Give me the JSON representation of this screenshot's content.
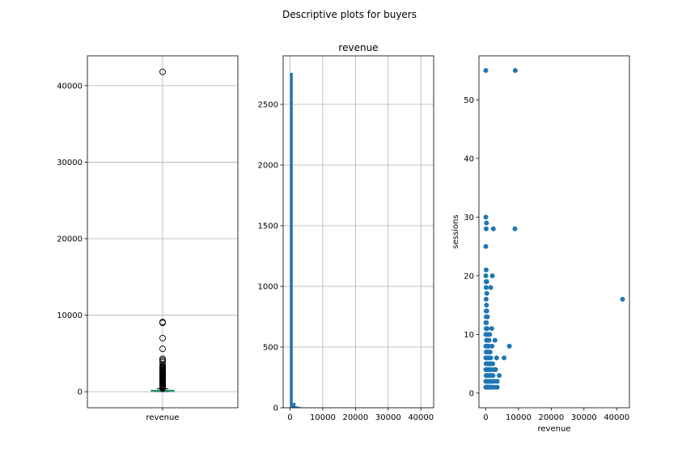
{
  "figure": {
    "title": "Descriptive plots for buyers"
  },
  "chart_data": [
    {
      "type": "box",
      "title": "",
      "xlabel": "",
      "ylabel": "",
      "categories": [
        "revenue"
      ],
      "ylim": [
        -2100,
        43900
      ],
      "yticks": [
        0,
        10000,
        20000,
        30000,
        40000
      ],
      "grid": true,
      "box": {
        "min": 0,
        "q1": 40,
        "median": 90,
        "q3": 180,
        "max": 390
      },
      "outliers": [
        41800,
        9100,
        9000,
        7000,
        5600,
        4300,
        4100,
        3900,
        3500,
        3300,
        3200,
        3100,
        3000,
        2900,
        2800,
        2700,
        2600,
        2500,
        2400,
        2300,
        2200,
        2100,
        2000,
        1900,
        1800,
        1700,
        1600,
        1500,
        1400,
        1300,
        1200,
        1100,
        1000,
        900,
        800,
        700,
        600,
        500,
        450,
        420
      ],
      "colors": {
        "box": "#1f77b4",
        "median": "#2ca02c",
        "whisker": "#000000"
      }
    },
    {
      "type": "bar",
      "subtype": "histogram",
      "title": "revenue",
      "xlabel": "",
      "ylabel": "",
      "xlim": [
        -2100,
        43900
      ],
      "ylim": [
        0,
        2900
      ],
      "xticks": [
        0,
        10000,
        20000,
        30000,
        40000
      ],
      "yticks": [
        0,
        500,
        1000,
        1500,
        2000,
        2500
      ],
      "grid": true,
      "bins": [
        {
          "x0": 0,
          "x1": 836,
          "count": 2760
        },
        {
          "x0": 836,
          "x1": 1672,
          "count": 40
        },
        {
          "x0": 1672,
          "x1": 2508,
          "count": 12
        },
        {
          "x0": 2508,
          "x1": 3344,
          "count": 6
        },
        {
          "x0": 3344,
          "x1": 4180,
          "count": 3
        },
        {
          "x0": 4180,
          "x1": 5016,
          "count": 1
        },
        {
          "x0": 5016,
          "x1": 5852,
          "count": 1
        },
        {
          "x0": 6688,
          "x1": 7524,
          "count": 1
        },
        {
          "x0": 8360,
          "x1": 9196,
          "count": 2
        },
        {
          "x0": 41000,
          "x1": 41836,
          "count": 1
        }
      ],
      "colors": {
        "bar": "#1f77b4"
      }
    },
    {
      "type": "scatter",
      "title": "",
      "xlabel": "revenue",
      "ylabel": "sessions",
      "xlim": [
        -2100,
        43900
      ],
      "ylim": [
        -2.5,
        57.5
      ],
      "xticks": [
        0,
        10000,
        20000,
        30000,
        40000
      ],
      "yticks": [
        0,
        10,
        20,
        30,
        40,
        50
      ],
      "grid": false,
      "points": [
        [
          0,
          55
        ],
        [
          9000,
          55
        ],
        [
          0,
          30
        ],
        [
          200,
          29
        ],
        [
          100,
          28
        ],
        [
          2300,
          28
        ],
        [
          8900,
          28
        ],
        [
          0,
          25
        ],
        [
          100,
          21
        ],
        [
          0,
          20
        ],
        [
          2000,
          20
        ],
        [
          100,
          19
        ],
        [
          300,
          19
        ],
        [
          100,
          18
        ],
        [
          1500,
          18
        ],
        [
          300,
          17
        ],
        [
          100,
          16
        ],
        [
          41800,
          16
        ],
        [
          200,
          15
        ],
        [
          300,
          14
        ],
        [
          100,
          14
        ],
        [
          100,
          13
        ],
        [
          500,
          13
        ],
        [
          0,
          12
        ],
        [
          200,
          12
        ],
        [
          100,
          11
        ],
        [
          400,
          11
        ],
        [
          1800,
          11
        ],
        [
          0,
          10
        ],
        [
          300,
          10
        ],
        [
          600,
          10
        ],
        [
          1200,
          10
        ],
        [
          200,
          9
        ],
        [
          500,
          9
        ],
        [
          1000,
          9
        ],
        [
          2800,
          9
        ],
        [
          0,
          8
        ],
        [
          400,
          8
        ],
        [
          900,
          8
        ],
        [
          1900,
          8
        ],
        [
          7200,
          8
        ],
        [
          100,
          7
        ],
        [
          300,
          7
        ],
        [
          700,
          7
        ],
        [
          1300,
          7
        ],
        [
          0,
          6
        ],
        [
          300,
          6
        ],
        [
          800,
          6
        ],
        [
          1500,
          6
        ],
        [
          3300,
          6
        ],
        [
          5600,
          6
        ],
        [
          100,
          5
        ],
        [
          400,
          5
        ],
        [
          900,
          5
        ],
        [
          1400,
          5
        ],
        [
          2100,
          5
        ],
        [
          0,
          4
        ],
        [
          200,
          4
        ],
        [
          500,
          4
        ],
        [
          800,
          4
        ],
        [
          1200,
          4
        ],
        [
          1700,
          4
        ],
        [
          2400,
          4
        ],
        [
          3000,
          4
        ],
        [
          100,
          3
        ],
        [
          400,
          3
        ],
        [
          700,
          3
        ],
        [
          1100,
          3
        ],
        [
          1600,
          3
        ],
        [
          2200,
          3
        ],
        [
          4100,
          3
        ],
        [
          0,
          2
        ],
        [
          300,
          2
        ],
        [
          600,
          2
        ],
        [
          1000,
          2
        ],
        [
          1400,
          2
        ],
        [
          2000,
          2
        ],
        [
          2600,
          2
        ],
        [
          3500,
          2
        ],
        [
          0,
          1
        ],
        [
          200,
          1
        ],
        [
          400,
          1
        ],
        [
          700,
          1
        ],
        [
          1000,
          1
        ],
        [
          1300,
          1
        ],
        [
          1700,
          1
        ],
        [
          2300,
          1
        ],
        [
          2900,
          1
        ],
        [
          3500,
          1
        ]
      ],
      "colors": {
        "point": "#1f77b4"
      }
    }
  ]
}
